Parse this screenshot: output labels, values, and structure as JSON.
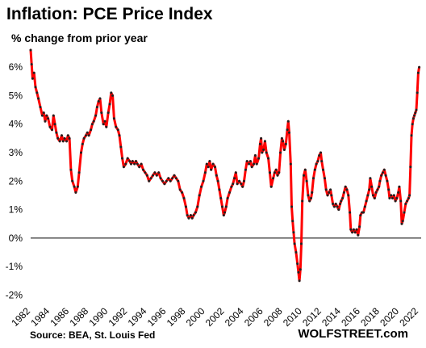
{
  "chart_data": {
    "type": "line",
    "title": "Inflation: PCE Price Index",
    "subtitle": "% change from prior year",
    "ylabel": "",
    "xlabel": "",
    "ylim": [
      -2.3,
      6.6
    ],
    "xlim": [
      1982.0,
      2022.25
    ],
    "yticks": [
      -2,
      -1,
      0,
      1,
      2,
      3,
      4,
      5,
      6
    ],
    "ytick_labels": [
      "-2%",
      "-1%",
      "0%",
      "1%",
      "2%",
      "3%",
      "4%",
      "5%",
      "6%"
    ],
    "xticks": [
      1982,
      1984,
      1986,
      1988,
      1990,
      1992,
      1994,
      1996,
      1998,
      2000,
      2002,
      2004,
      2006,
      2008,
      2010,
      2012,
      2014,
      2016,
      2018,
      2020,
      2022
    ],
    "xtick_labels": [
      "1982",
      "1984",
      "1986",
      "1988",
      "1990",
      "1992",
      "1994",
      "1996",
      "1998",
      "2000",
      "2002",
      "2004",
      "2006",
      "2008",
      "2010",
      "2012",
      "2014",
      "2016",
      "2018",
      "2020",
      "2022"
    ],
    "grid": false,
    "zero_line": true,
    "line_color": "#ff0000",
    "marker_color": "#222222",
    "series": [
      {
        "points": [
          [
            1982.0,
            6.6
          ],
          [
            1982.1,
            6.1
          ],
          [
            1982.2,
            5.6
          ],
          [
            1982.35,
            5.8
          ],
          [
            1982.5,
            5.3
          ],
          [
            1982.65,
            5.1
          ],
          [
            1982.8,
            4.9
          ],
          [
            1983.0,
            4.6
          ],
          [
            1983.2,
            4.3
          ],
          [
            1983.35,
            4.4
          ],
          [
            1983.5,
            4.1
          ],
          [
            1983.65,
            4.3
          ],
          [
            1983.8,
            4.2
          ],
          [
            1984.0,
            3.9
          ],
          [
            1984.2,
            3.8
          ],
          [
            1984.35,
            4.3
          ],
          [
            1984.5,
            4.0
          ],
          [
            1984.65,
            3.7
          ],
          [
            1984.8,
            3.5
          ],
          [
            1985.0,
            3.4
          ],
          [
            1985.2,
            3.6
          ],
          [
            1985.35,
            3.4
          ],
          [
            1985.5,
            3.5
          ],
          [
            1985.7,
            3.4
          ],
          [
            1985.85,
            3.6
          ],
          [
            1986.0,
            3.5
          ],
          [
            1986.15,
            2.4
          ],
          [
            1986.3,
            2.0
          ],
          [
            1986.5,
            1.8
          ],
          [
            1986.65,
            1.6
          ],
          [
            1986.85,
            1.8
          ],
          [
            1987.0,
            2.3
          ],
          [
            1987.2,
            3.0
          ],
          [
            1987.35,
            3.3
          ],
          [
            1987.5,
            3.5
          ],
          [
            1987.7,
            3.6
          ],
          [
            1987.85,
            3.7
          ],
          [
            1988.0,
            3.6
          ],
          [
            1988.2,
            3.8
          ],
          [
            1988.35,
            4.0
          ],
          [
            1988.5,
            4.1
          ],
          [
            1988.7,
            4.3
          ],
          [
            1988.85,
            4.6
          ],
          [
            1989.0,
            4.8
          ],
          [
            1989.15,
            4.9
          ],
          [
            1989.3,
            4.4
          ],
          [
            1989.5,
            4.0
          ],
          [
            1989.65,
            4.1
          ],
          [
            1989.8,
            3.9
          ],
          [
            1990.0,
            4.4
          ],
          [
            1990.15,
            4.7
          ],
          [
            1990.3,
            5.1
          ],
          [
            1990.45,
            5.0
          ],
          [
            1990.6,
            4.2
          ],
          [
            1990.8,
            3.9
          ],
          [
            1991.0,
            3.8
          ],
          [
            1991.15,
            3.6
          ],
          [
            1991.3,
            3.2
          ],
          [
            1991.45,
            2.8
          ],
          [
            1991.6,
            2.5
          ],
          [
            1991.8,
            2.6
          ],
          [
            1992.0,
            2.8
          ],
          [
            1992.2,
            2.7
          ],
          [
            1992.35,
            2.6
          ],
          [
            1992.5,
            2.7
          ],
          [
            1992.7,
            2.6
          ],
          [
            1992.85,
            2.7
          ],
          [
            1993.0,
            2.6
          ],
          [
            1993.2,
            2.5
          ],
          [
            1993.4,
            2.6
          ],
          [
            1993.6,
            2.4
          ],
          [
            1993.8,
            2.3
          ],
          [
            1994.0,
            2.2
          ],
          [
            1994.2,
            2.0
          ],
          [
            1994.4,
            2.1
          ],
          [
            1994.6,
            2.2
          ],
          [
            1994.8,
            2.3
          ],
          [
            1995.0,
            2.2
          ],
          [
            1995.2,
            2.3
          ],
          [
            1995.4,
            2.1
          ],
          [
            1995.6,
            2.0
          ],
          [
            1995.8,
            1.9
          ],
          [
            1996.0,
            2.0
          ],
          [
            1996.2,
            2.1
          ],
          [
            1996.4,
            2.0
          ],
          [
            1996.6,
            2.1
          ],
          [
            1996.8,
            2.2
          ],
          [
            1997.0,
            2.1
          ],
          [
            1997.2,
            2.0
          ],
          [
            1997.4,
            1.7
          ],
          [
            1997.6,
            1.6
          ],
          [
            1997.8,
            1.4
          ],
          [
            1998.0,
            1.1
          ],
          [
            1998.15,
            0.8
          ],
          [
            1998.3,
            0.7
          ],
          [
            1998.5,
            0.8
          ],
          [
            1998.65,
            0.7
          ],
          [
            1998.8,
            0.8
          ],
          [
            1999.0,
            0.9
          ],
          [
            1999.2,
            1.1
          ],
          [
            1999.4,
            1.5
          ],
          [
            1999.6,
            1.8
          ],
          [
            1999.8,
            2.0
          ],
          [
            2000.0,
            2.3
          ],
          [
            2000.15,
            2.6
          ],
          [
            2000.3,
            2.5
          ],
          [
            2000.45,
            2.7
          ],
          [
            2000.6,
            2.4
          ],
          [
            2000.8,
            2.6
          ],
          [
            2001.0,
            2.5
          ],
          [
            2001.15,
            2.2
          ],
          [
            2001.3,
            2.0
          ],
          [
            2001.45,
            1.7
          ],
          [
            2001.6,
            1.4
          ],
          [
            2001.75,
            1.1
          ],
          [
            2001.9,
            0.8
          ],
          [
            2002.0,
            0.9
          ],
          [
            2002.15,
            1.1
          ],
          [
            2002.3,
            1.4
          ],
          [
            2002.5,
            1.6
          ],
          [
            2002.7,
            1.8
          ],
          [
            2002.85,
            1.9
          ],
          [
            2003.0,
            2.1
          ],
          [
            2003.15,
            2.3
          ],
          [
            2003.3,
            1.9
          ],
          [
            2003.5,
            2.0
          ],
          [
            2003.7,
            1.9
          ],
          [
            2003.85,
            1.8
          ],
          [
            2004.0,
            2.0
          ],
          [
            2004.15,
            2.4
          ],
          [
            2004.3,
            2.7
          ],
          [
            2004.5,
            2.6
          ],
          [
            2004.65,
            2.7
          ],
          [
            2004.8,
            2.5
          ],
          [
            2005.0,
            2.6
          ],
          [
            2005.15,
            2.9
          ],
          [
            2005.3,
            2.6
          ],
          [
            2005.5,
            2.8
          ],
          [
            2005.65,
            3.3
          ],
          [
            2005.75,
            3.5
          ],
          [
            2005.85,
            3.0
          ],
          [
            2006.0,
            3.1
          ],
          [
            2006.15,
            3.4
          ],
          [
            2006.3,
            3.0
          ],
          [
            2006.5,
            2.8
          ],
          [
            2006.65,
            2.3
          ],
          [
            2006.8,
            1.8
          ],
          [
            2007.0,
            2.1
          ],
          [
            2007.15,
            2.3
          ],
          [
            2007.3,
            2.4
          ],
          [
            2007.45,
            2.2
          ],
          [
            2007.6,
            2.3
          ],
          [
            2007.75,
            3.0
          ],
          [
            2007.9,
            3.5
          ],
          [
            2008.0,
            3.4
          ],
          [
            2008.15,
            3.1
          ],
          [
            2008.3,
            3.3
          ],
          [
            2008.45,
            3.8
          ],
          [
            2008.55,
            4.1
          ],
          [
            2008.65,
            3.7
          ],
          [
            2008.8,
            2.6
          ],
          [
            2008.9,
            1.1
          ],
          [
            2009.0,
            0.6
          ],
          [
            2009.1,
            0.2
          ],
          [
            2009.2,
            -0.2
          ],
          [
            2009.35,
            -0.5
          ],
          [
            2009.5,
            -0.9
          ],
          [
            2009.6,
            -1.2
          ],
          [
            2009.7,
            -1.5
          ],
          [
            2009.8,
            -1.1
          ],
          [
            2009.9,
            -0.2
          ],
          [
            2010.0,
            1.3
          ],
          [
            2010.15,
            2.2
          ],
          [
            2010.3,
            2.4
          ],
          [
            2010.45,
            2.0
          ],
          [
            2010.6,
            1.5
          ],
          [
            2010.75,
            1.3
          ],
          [
            2010.9,
            1.4
          ],
          [
            2011.0,
            1.6
          ],
          [
            2011.15,
            2.1
          ],
          [
            2011.3,
            2.4
          ],
          [
            2011.45,
            2.6
          ],
          [
            2011.6,
            2.7
          ],
          [
            2011.75,
            2.9
          ],
          [
            2011.9,
            3.0
          ],
          [
            2012.0,
            2.7
          ],
          [
            2012.15,
            2.4
          ],
          [
            2012.3,
            2.1
          ],
          [
            2012.45,
            1.7
          ],
          [
            2012.6,
            1.5
          ],
          [
            2012.75,
            1.6
          ],
          [
            2012.9,
            1.7
          ],
          [
            2013.0,
            1.5
          ],
          [
            2013.15,
            1.2
          ],
          [
            2013.3,
            1.1
          ],
          [
            2013.45,
            1.2
          ],
          [
            2013.6,
            1.1
          ],
          [
            2013.75,
            1.0
          ],
          [
            2013.9,
            1.2
          ],
          [
            2014.0,
            1.3
          ],
          [
            2014.15,
            1.4
          ],
          [
            2014.3,
            1.6
          ],
          [
            2014.45,
            1.8
          ],
          [
            2014.6,
            1.7
          ],
          [
            2014.75,
            1.5
          ],
          [
            2014.9,
            0.9
          ],
          [
            2015.0,
            0.3
          ],
          [
            2015.15,
            0.2
          ],
          [
            2015.3,
            0.3
          ],
          [
            2015.45,
            0.2
          ],
          [
            2015.6,
            0.3
          ],
          [
            2015.75,
            0.1
          ],
          [
            2015.9,
            0.4
          ],
          [
            2016.0,
            0.8
          ],
          [
            2016.15,
            0.9
          ],
          [
            2016.3,
            0.9
          ],
          [
            2016.45,
            1.1
          ],
          [
            2016.6,
            1.3
          ],
          [
            2016.75,
            1.5
          ],
          [
            2016.9,
            1.7
          ],
          [
            2017.0,
            2.1
          ],
          [
            2017.15,
            1.8
          ],
          [
            2017.3,
            1.5
          ],
          [
            2017.45,
            1.4
          ],
          [
            2017.6,
            1.6
          ],
          [
            2017.75,
            1.7
          ],
          [
            2017.9,
            1.8
          ],
          [
            2018.0,
            2.0
          ],
          [
            2018.15,
            2.2
          ],
          [
            2018.3,
            2.3
          ],
          [
            2018.45,
            2.4
          ],
          [
            2018.6,
            2.2
          ],
          [
            2018.75,
            2.0
          ],
          [
            2018.9,
            1.7
          ],
          [
            2019.0,
            1.4
          ],
          [
            2019.15,
            1.5
          ],
          [
            2019.3,
            1.4
          ],
          [
            2019.45,
            1.5
          ],
          [
            2019.6,
            1.3
          ],
          [
            2019.75,
            1.4
          ],
          [
            2019.9,
            1.6
          ],
          [
            2020.0,
            1.8
          ],
          [
            2020.15,
            1.3
          ],
          [
            2020.25,
            0.5
          ],
          [
            2020.35,
            0.6
          ],
          [
            2020.5,
            0.9
          ],
          [
            2020.65,
            1.2
          ],
          [
            2020.8,
            1.3
          ],
          [
            2020.95,
            1.4
          ],
          [
            2021.05,
            1.5
          ],
          [
            2021.15,
            2.5
          ],
          [
            2021.25,
            3.6
          ],
          [
            2021.35,
            4.0
          ],
          [
            2021.45,
            4.2
          ],
          [
            2021.55,
            4.3
          ],
          [
            2021.65,
            4.4
          ],
          [
            2021.75,
            4.5
          ],
          [
            2021.85,
            5.1
          ],
          [
            2021.95,
            5.8
          ],
          [
            2022.05,
            6.0
          ]
        ]
      }
    ]
  },
  "footer": {
    "source": "Source: BEA, St. Louis Fed",
    "brand": "WOLFSTREET.com"
  }
}
